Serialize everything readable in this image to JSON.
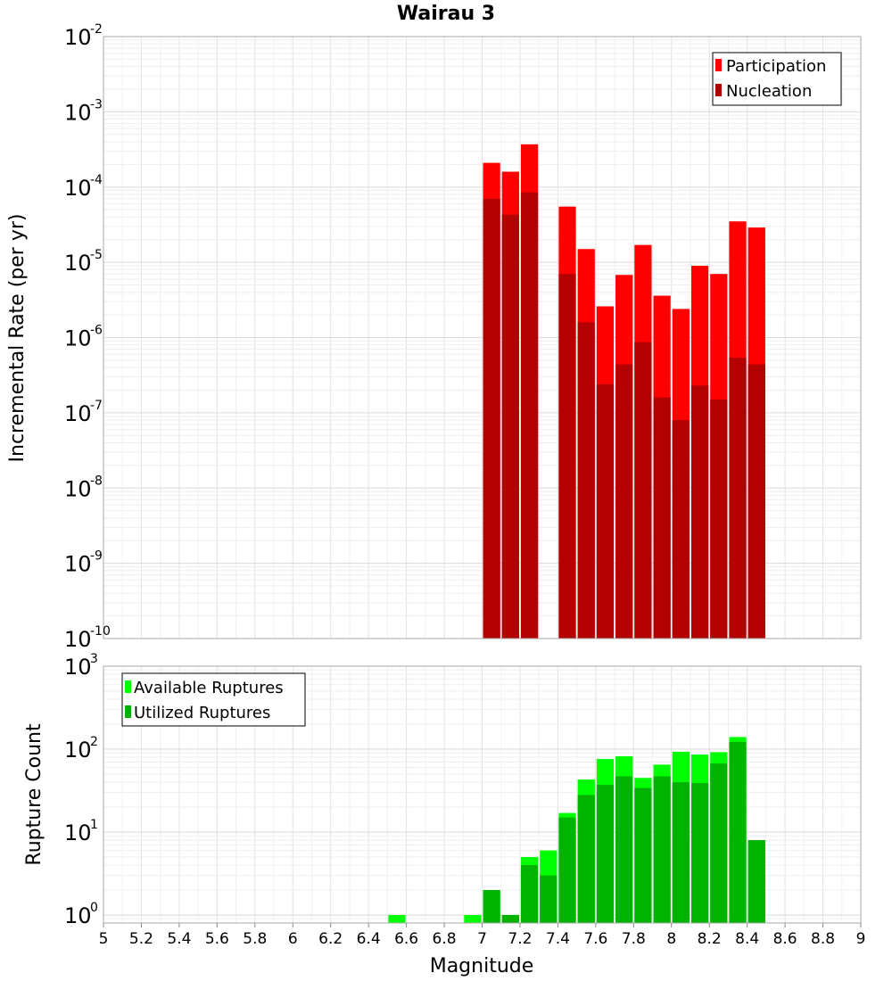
{
  "chart_data": [
    {
      "type": "bar",
      "title": "Wairau 3",
      "xlabel": "",
      "ylabel": "Incremental Rate (per yr)",
      "yscale": "log",
      "ylim": [
        1e-10,
        0.01
      ],
      "xlim": [
        5,
        9
      ],
      "bin_width": 0.1,
      "y_tick_exponents": [
        "-10",
        "-9",
        "-8",
        "-7",
        "-6",
        "-5",
        "-4",
        "-3",
        "-2"
      ],
      "legend": {
        "position": "top-right",
        "entries": [
          "Participation",
          "Nucleation"
        ]
      },
      "colors": {
        "Participation": "#ff0000",
        "Nucleation": "#b30000"
      },
      "x": [
        7.05,
        7.15,
        7.25,
        7.45,
        7.55,
        7.65,
        7.75,
        7.85,
        7.95,
        8.05,
        8.15,
        8.25,
        8.35,
        8.45
      ],
      "series": [
        {
          "name": "Participation",
          "values": [
            0.00021,
            0.00016,
            0.00037,
            5.5e-05,
            1.5e-05,
            2.6e-06,
            6.8e-06,
            1.7e-05,
            3.6e-06,
            2.4e-06,
            9e-06,
            7e-06,
            3.5e-05,
            2.9e-05
          ]
        },
        {
          "name": "Nucleation",
          "values": [
            7e-05,
            4.3e-05,
            8.5e-05,
            7e-06,
            1.6e-06,
            2.4e-07,
            4.4e-07,
            8.7e-07,
            1.6e-07,
            8e-08,
            2.3e-07,
            1.5e-07,
            5.4e-07,
            4.4e-07
          ]
        }
      ]
    },
    {
      "type": "bar",
      "title": "",
      "xlabel": "Magnitude",
      "ylabel": "Rupture Count",
      "yscale": "log",
      "ylim": [
        0.8,
        1000
      ],
      "xlim": [
        5,
        9
      ],
      "bin_width": 0.1,
      "y_tick_exponents": [
        "0",
        "1",
        "2",
        "3"
      ],
      "x_ticks": [
        "5",
        "5.2",
        "5.4",
        "5.6",
        "5.8",
        "6",
        "6.2",
        "6.4",
        "6.6",
        "6.8",
        "7",
        "7.2",
        "7.4",
        "7.6",
        "7.8",
        "8",
        "8.2",
        "8.4",
        "8.6",
        "8.8",
        "9"
      ],
      "legend": {
        "position": "top-left",
        "entries": [
          "Available Ruptures",
          "Utilized Ruptures"
        ]
      },
      "colors": {
        "Available Ruptures": "#00ff00",
        "Utilized Ruptures": "#00b300"
      },
      "x": [
        6.55,
        6.95,
        7.05,
        7.15,
        7.25,
        7.35,
        7.45,
        7.55,
        7.65,
        7.75,
        7.85,
        7.95,
        8.05,
        8.15,
        8.25,
        8.35,
        8.45
      ],
      "series": [
        {
          "name": "Available Ruptures",
          "values": [
            1,
            1,
            2,
            1,
            5,
            6,
            17,
            43,
            76,
            82,
            45,
            65,
            93,
            86,
            92,
            140,
            8
          ]
        },
        {
          "name": "Utilized Ruptures",
          "values": [
            0,
            0,
            2,
            1,
            4,
            3,
            15,
            28,
            37,
            47,
            34,
            47,
            40,
            39,
            67,
            122,
            8
          ]
        }
      ]
    }
  ]
}
